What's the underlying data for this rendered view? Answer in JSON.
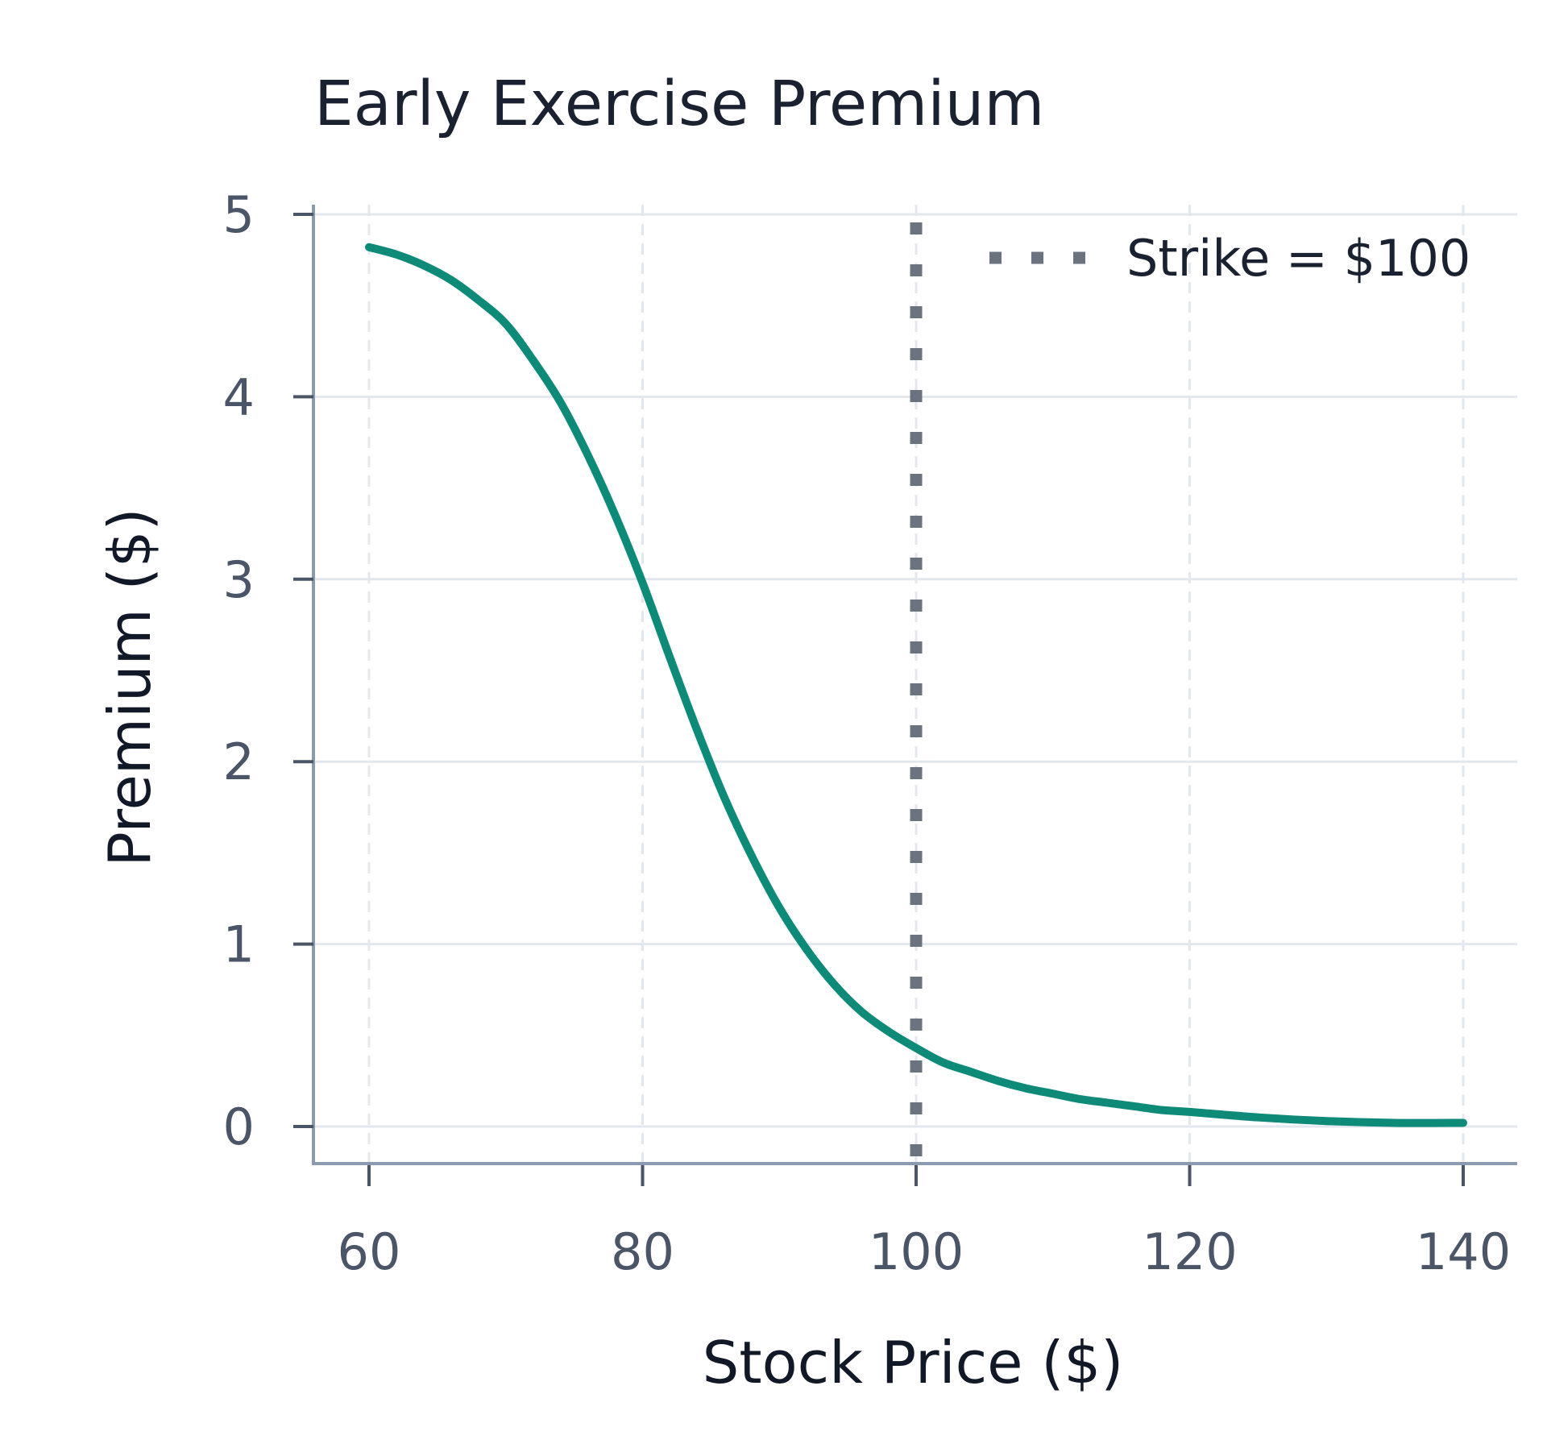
{
  "chart_data": {
    "type": "line",
    "title": "Early Exercise Premium",
    "xlabel": "Stock Price ($)",
    "ylabel": "Premium ($)",
    "xlim": [
      60,
      140
    ],
    "ylim": [
      0,
      5
    ],
    "xticks": [
      60,
      80,
      100,
      120,
      140
    ],
    "yticks": [
      0,
      1,
      2,
      3,
      4,
      5
    ],
    "grid": true,
    "legend_position": "top-right",
    "series": [
      {
        "name": "",
        "color": "#0e8a78",
        "x": [
          60,
          62,
          64,
          66,
          68,
          70,
          72,
          74,
          76,
          78,
          80,
          82,
          84,
          86,
          88,
          90,
          92,
          94,
          96,
          98,
          100,
          102,
          104,
          106,
          108,
          110,
          112,
          114,
          116,
          118,
          120,
          125,
          130,
          135,
          140
        ],
        "y": [
          4.82,
          4.78,
          4.72,
          4.64,
          4.53,
          4.4,
          4.2,
          3.97,
          3.68,
          3.35,
          2.98,
          2.57,
          2.17,
          1.8,
          1.48,
          1.2,
          0.97,
          0.78,
          0.63,
          0.52,
          0.43,
          0.35,
          0.3,
          0.25,
          0.21,
          0.18,
          0.15,
          0.13,
          0.11,
          0.09,
          0.08,
          0.05,
          0.03,
          0.02,
          0.02
        ]
      }
    ],
    "reference_lines": [
      {
        "axis": "x",
        "value": 100,
        "label": "Strike = $100",
        "style": "dotted",
        "color": "#6b7280"
      }
    ]
  }
}
